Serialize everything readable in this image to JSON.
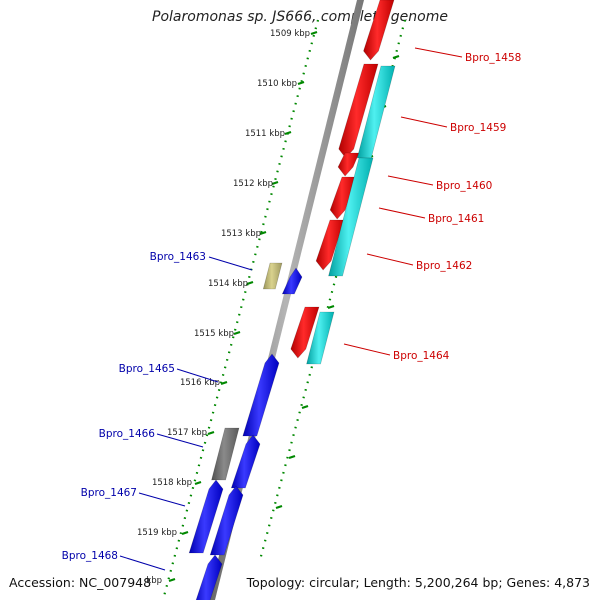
{
  "title": "Polaromonas sp. JS666, complete genome",
  "footer": {
    "accession": "Accession: NC_007948",
    "topology": "Topology: circular; Length: 5,200,264 bp; Genes: 4,873"
  },
  "colors": {
    "forward_gene": "#ff0000",
    "forward_cds": "#00cccc",
    "reverse_gene": "#0000ff",
    "reverse_other": "#6e6e6e",
    "reverse_other2": "#bdb76b",
    "forward_label": "#cc0000",
    "reverse_label": "#0000aa",
    "tick": "#008800",
    "backbone": "#888888"
  },
  "ticks": [
    {
      "label": "1509 kbp"
    },
    {
      "label": "1510 kbp"
    },
    {
      "label": "1511 kbp"
    },
    {
      "label": "1512 kbp"
    },
    {
      "label": "1513 kbp"
    },
    {
      "label": "1514 kbp"
    },
    {
      "label": "1515 kbp"
    },
    {
      "label": "1516 kbp"
    },
    {
      "label": "1517 kbp"
    },
    {
      "label": "1518 kbp"
    },
    {
      "label": "1519 kbp"
    },
    {
      "label": "kbp"
    }
  ],
  "forward_labels": [
    "Bpro_1458",
    "Bpro_1459",
    "Bpro_1460",
    "Bpro_1461",
    "Bpro_1462",
    "Bpro_1464"
  ],
  "reverse_labels": [
    "Bpro_1463",
    "Bpro_1465",
    "Bpro_1466",
    "Bpro_1467",
    "Bpro_1468"
  ]
}
